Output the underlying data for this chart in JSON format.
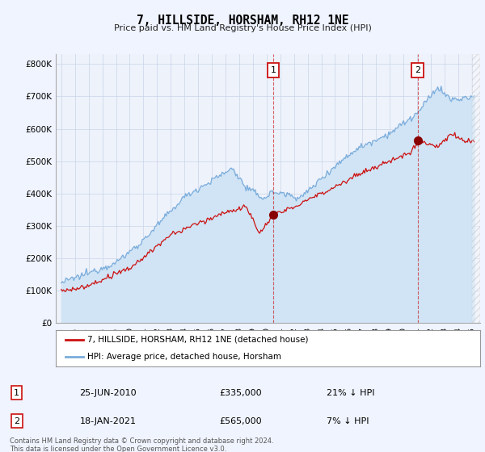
{
  "title": "7, HILLSIDE, HORSHAM, RH12 1NE",
  "subtitle": "Price paid vs. HM Land Registry's House Price Index (HPI)",
  "ylabel_ticks": [
    "£0",
    "£100K",
    "£200K",
    "£300K",
    "£400K",
    "£500K",
    "£600K",
    "£700K",
    "£800K"
  ],
  "ytick_values": [
    0,
    100000,
    200000,
    300000,
    400000,
    500000,
    600000,
    700000,
    800000
  ],
  "ylim": [
    0,
    830000
  ],
  "xlim_start": 1994.6,
  "xlim_end": 2025.6,
  "hpi_color": "#7aacdb",
  "hpi_fill_color": "#d0e4f5",
  "price_color": "#cc1111",
  "marker1_x": 2010.48,
  "marker1_y": 335000,
  "marker2_x": 2021.05,
  "marker2_y": 565000,
  "legend_label_red": "7, HILLSIDE, HORSHAM, RH12 1NE (detached house)",
  "legend_label_blue": "HPI: Average price, detached house, Horsham",
  "annotation1_date": "25-JUN-2010",
  "annotation1_price": "£335,000",
  "annotation1_hpi": "21% ↓ HPI",
  "annotation2_date": "18-JAN-2021",
  "annotation2_price": "£565,000",
  "annotation2_hpi": "7% ↓ HPI",
  "footer": "Contains HM Land Registry data © Crown copyright and database right 2024.\nThis data is licensed under the Open Government Licence v3.0.",
  "bg_color": "#f0f4ff",
  "plot_bg": "#eef2fb",
  "grid_color": "#c8d4e8"
}
